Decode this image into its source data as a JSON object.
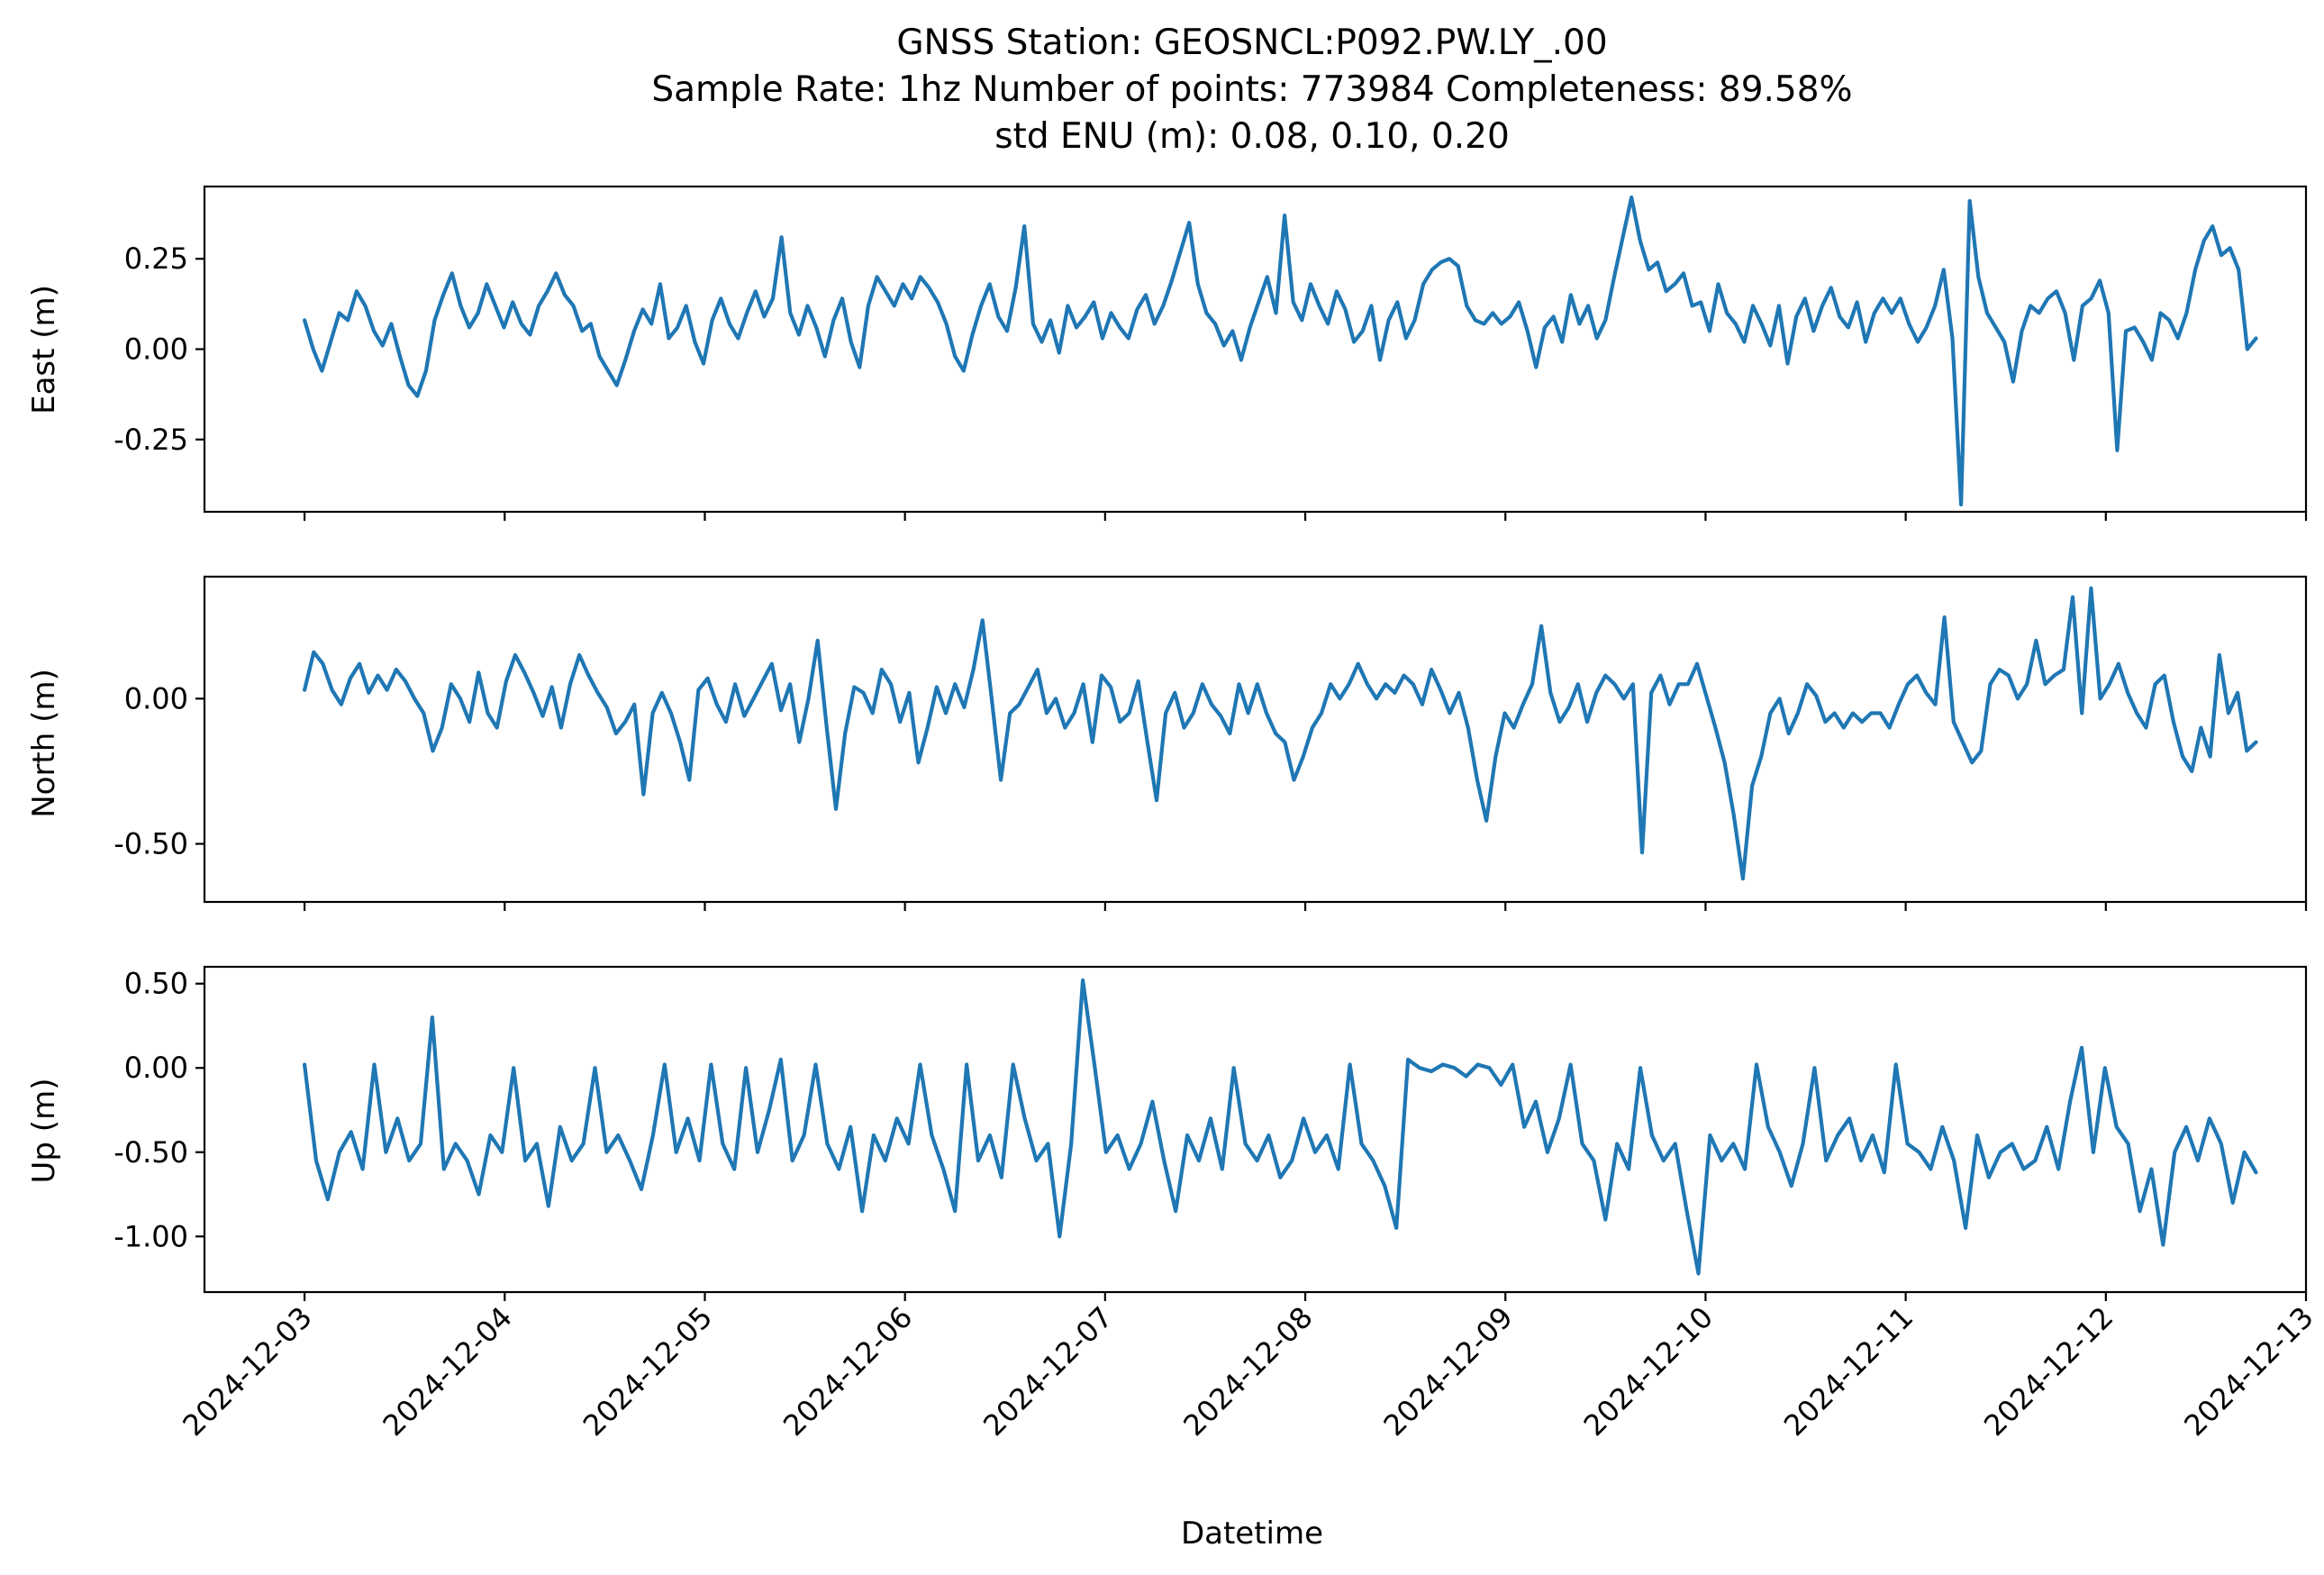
{
  "chart_data": {
    "type": "line",
    "title_lines": [
      "GNSS Station: GEOSNCL:P092.PW.LY_.00",
      "Sample Rate: 1hz   Number of points: 773984    Completeness:  89.58%",
      "std ENU (m):  0.08, 0.10, 0.20"
    ],
    "xlabel": "Datetime",
    "x_start": "2024-12-03T00:00",
    "x_end": "2024-12-12T18:00",
    "xlim": [
      "2024-12-02T12:00",
      "2024-12-13T00:00"
    ],
    "x_ticks": [
      "2024-12-03",
      "2024-12-04",
      "2024-12-05",
      "2024-12-06",
      "2024-12-07",
      "2024-12-08",
      "2024-12-09",
      "2024-12-10",
      "2024-12-11",
      "2024-12-12",
      "2024-12-13"
    ],
    "color": "#1f77b4",
    "panels": [
      {
        "name": "east",
        "ylabel": "East (m)",
        "ylim": [
          -0.45,
          0.45
        ],
        "y_ticks": [
          {
            "value": 0.25,
            "label": "0.25"
          },
          {
            "value": 0.0,
            "label": "0.00"
          },
          {
            "value": -0.25,
            "label": "-0.25"
          }
        ],
        "values": [
          0.08,
          0.0,
          -0.06,
          0.02,
          0.1,
          0.08,
          0.16,
          0.12,
          0.05,
          0.01,
          0.07,
          -0.02,
          -0.1,
          -0.13,
          -0.06,
          0.08,
          0.15,
          0.21,
          0.12,
          0.06,
          0.1,
          0.18,
          0.12,
          0.06,
          0.13,
          0.07,
          0.04,
          0.12,
          0.16,
          0.21,
          0.15,
          0.12,
          0.05,
          0.07,
          -0.02,
          -0.06,
          -0.1,
          -0.03,
          0.05,
          0.11,
          0.07,
          0.18,
          0.03,
          0.06,
          0.12,
          0.02,
          -0.04,
          0.08,
          0.14,
          0.07,
          0.03,
          0.1,
          0.16,
          0.09,
          0.14,
          0.31,
          0.1,
          0.04,
          0.12,
          0.06,
          -0.02,
          0.08,
          0.14,
          0.02,
          -0.05,
          0.12,
          0.2,
          0.16,
          0.12,
          0.18,
          0.14,
          0.2,
          0.17,
          0.13,
          0.07,
          -0.02,
          -0.06,
          0.04,
          0.12,
          0.18,
          0.09,
          0.05,
          0.17,
          0.34,
          0.07,
          0.02,
          0.08,
          -0.01,
          0.12,
          0.06,
          0.09,
          0.13,
          0.03,
          0.1,
          0.06,
          0.03,
          0.11,
          0.15,
          0.07,
          0.12,
          0.19,
          0.27,
          0.35,
          0.18,
          0.1,
          0.07,
          0.01,
          0.05,
          -0.03,
          0.06,
          0.13,
          0.2,
          0.1,
          0.37,
          0.13,
          0.08,
          0.18,
          0.12,
          0.07,
          0.16,
          0.11,
          0.02,
          0.05,
          0.12,
          -0.03,
          0.08,
          0.13,
          0.03,
          0.08,
          0.18,
          0.22,
          0.24,
          0.25,
          0.23,
          0.12,
          0.08,
          0.07,
          0.1,
          0.07,
          0.09,
          0.13,
          0.05,
          -0.05,
          0.06,
          0.09,
          0.02,
          0.15,
          0.07,
          0.12,
          0.03,
          0.08,
          0.2,
          0.31,
          0.42,
          0.3,
          0.22,
          0.24,
          0.16,
          0.18,
          0.21,
          0.12,
          0.13,
          0.05,
          0.18,
          0.1,
          0.07,
          0.02,
          0.12,
          0.07,
          0.01,
          0.12,
          -0.04,
          0.09,
          0.14,
          0.05,
          0.12,
          0.17,
          0.09,
          0.06,
          0.13,
          0.02,
          0.1,
          0.14,
          0.1,
          0.14,
          0.07,
          0.02,
          0.06,
          0.12,
          0.22,
          0.03,
          -0.43,
          0.41,
          0.2,
          0.1,
          0.06,
          0.02,
          -0.09,
          0.05,
          0.12,
          0.1,
          0.14,
          0.16,
          0.1,
          -0.03,
          0.12,
          0.14,
          0.19,
          0.1,
          -0.28,
          0.05,
          0.06,
          0.02,
          -0.03,
          0.1,
          0.08,
          0.03,
          0.1,
          0.22,
          0.3,
          0.34,
          0.26,
          0.28,
          0.22,
          0.0,
          0.03
        ]
      },
      {
        "name": "north",
        "ylabel": "North (m)",
        "ylim": [
          -0.7,
          0.42
        ],
        "y_ticks": [
          {
            "value": 0.0,
            "label": "0.00"
          },
          {
            "value": -0.5,
            "label": "-0.50"
          }
        ],
        "values": [
          0.03,
          0.16,
          0.12,
          0.03,
          -0.02,
          0.07,
          0.12,
          0.02,
          0.08,
          0.03,
          0.1,
          0.06,
          0.0,
          -0.05,
          -0.18,
          -0.1,
          0.05,
          0.0,
          -0.08,
          0.09,
          -0.05,
          -0.1,
          0.06,
          0.15,
          0.09,
          0.02,
          -0.06,
          0.04,
          -0.1,
          0.05,
          0.15,
          0.08,
          0.02,
          -0.03,
          -0.12,
          -0.08,
          -0.02,
          -0.33,
          -0.05,
          0.02,
          -0.05,
          -0.15,
          -0.28,
          0.03,
          0.07,
          -0.02,
          -0.08,
          0.05,
          -0.06,
          0.0,
          0.06,
          0.12,
          -0.04,
          0.05,
          -0.15,
          0.0,
          0.2,
          -0.1,
          -0.38,
          -0.12,
          0.04,
          0.02,
          -0.05,
          0.1,
          0.05,
          -0.08,
          0.02,
          -0.22,
          -0.1,
          0.04,
          -0.05,
          0.05,
          -0.03,
          0.1,
          0.27,
          0.0,
          -0.28,
          -0.05,
          -0.02,
          0.04,
          0.1,
          -0.05,
          0.0,
          -0.1,
          -0.05,
          0.05,
          -0.15,
          0.08,
          0.04,
          -0.08,
          -0.05,
          0.06,
          -0.15,
          -0.35,
          -0.05,
          0.02,
          -0.1,
          -0.05,
          0.05,
          -0.02,
          -0.06,
          -0.12,
          0.05,
          -0.05,
          0.05,
          -0.05,
          -0.12,
          -0.15,
          -0.28,
          -0.2,
          -0.1,
          -0.05,
          0.05,
          0.0,
          0.05,
          0.12,
          0.05,
          0.0,
          0.05,
          0.02,
          0.08,
          0.05,
          -0.02,
          0.1,
          0.03,
          -0.05,
          0.02,
          -0.1,
          -0.28,
          -0.42,
          -0.2,
          -0.05,
          -0.1,
          -0.02,
          0.05,
          0.25,
          0.02,
          -0.08,
          -0.03,
          0.05,
          -0.08,
          0.02,
          0.08,
          0.05,
          0.0,
          0.05,
          -0.53,
          0.02,
          0.08,
          -0.02,
          0.05,
          0.05,
          0.12,
          0.01,
          -0.1,
          -0.22,
          -0.4,
          -0.62,
          -0.3,
          -0.2,
          -0.05,
          0.0,
          -0.12,
          -0.05,
          0.05,
          0.01,
          -0.08,
          -0.05,
          -0.1,
          -0.05,
          -0.08,
          -0.05,
          -0.05,
          -0.1,
          -0.02,
          0.05,
          0.08,
          0.02,
          -0.02,
          0.28,
          -0.08,
          -0.15,
          -0.22,
          -0.18,
          0.05,
          0.1,
          0.08,
          0.0,
          0.05,
          0.2,
          0.05,
          0.08,
          0.1,
          0.35,
          -0.05,
          0.38,
          0.0,
          0.05,
          0.12,
          0.02,
          -0.05,
          -0.1,
          0.05,
          0.08,
          -0.08,
          -0.2,
          -0.25,
          -0.1,
          -0.2,
          0.15,
          -0.05,
          0.02,
          -0.18,
          -0.15
        ]
      },
      {
        "name": "up",
        "ylabel": "Up (m)",
        "ylim": [
          -1.33,
          0.6
        ],
        "y_ticks": [
          {
            "value": 0.5,
            "label": "0.50"
          },
          {
            "value": 0.0,
            "label": "0.00"
          },
          {
            "value": -0.5,
            "label": "-0.50"
          },
          {
            "value": -1.0,
            "label": "-1.00"
          }
        ],
        "values": [
          0.02,
          -0.55,
          -0.78,
          -0.5,
          -0.38,
          -0.6,
          0.02,
          -0.5,
          -0.3,
          -0.55,
          -0.45,
          0.3,
          -0.6,
          -0.45,
          -0.55,
          -0.75,
          -0.4,
          -0.5,
          0.0,
          -0.55,
          -0.45,
          -0.82,
          -0.35,
          -0.55,
          -0.45,
          0.0,
          -0.5,
          -0.4,
          -0.55,
          -0.72,
          -0.4,
          0.02,
          -0.5,
          -0.3,
          -0.55,
          0.02,
          -0.45,
          -0.6,
          0.0,
          -0.5,
          -0.25,
          0.05,
          -0.55,
          -0.4,
          0.02,
          -0.45,
          -0.6,
          -0.35,
          -0.85,
          -0.4,
          -0.55,
          -0.3,
          -0.45,
          0.02,
          -0.4,
          -0.6,
          -0.85,
          0.02,
          -0.55,
          -0.4,
          -0.65,
          0.02,
          -0.3,
          -0.55,
          -0.45,
          -1.0,
          -0.45,
          0.52,
          0.02,
          -0.5,
          -0.4,
          -0.6,
          -0.45,
          -0.2,
          -0.55,
          -0.85,
          -0.4,
          -0.55,
          -0.3,
          -0.6,
          0.0,
          -0.45,
          -0.55,
          -0.4,
          -0.65,
          -0.55,
          -0.3,
          -0.5,
          -0.4,
          -0.6,
          0.02,
          -0.45,
          -0.55,
          -0.7,
          -0.95,
          0.05,
          0.0,
          -0.02,
          0.02,
          0.0,
          -0.05,
          0.02,
          0.0,
          -0.1,
          0.02,
          -0.35,
          -0.2,
          -0.5,
          -0.3,
          0.02,
          -0.45,
          -0.55,
          -0.9,
          -0.45,
          -0.6,
          0.0,
          -0.4,
          -0.55,
          -0.45,
          -0.85,
          -1.22,
          -0.4,
          -0.55,
          -0.45,
          -0.6,
          0.02,
          -0.35,
          -0.5,
          -0.7,
          -0.45,
          0.0,
          -0.55,
          -0.4,
          -0.3,
          -0.55,
          -0.4,
          -0.62,
          0.02,
          -0.45,
          -0.5,
          -0.6,
          -0.35,
          -0.55,
          -0.95,
          -0.4,
          -0.65,
          -0.5,
          -0.45,
          -0.6,
          -0.55,
          -0.35,
          -0.6,
          -0.2,
          0.12,
          -0.5,
          0.0,
          -0.35,
          -0.45,
          -0.85,
          -0.6,
          -1.05,
          -0.5,
          -0.35,
          -0.55,
          -0.3,
          -0.45,
          -0.8,
          -0.5,
          -0.62
        ]
      }
    ]
  }
}
